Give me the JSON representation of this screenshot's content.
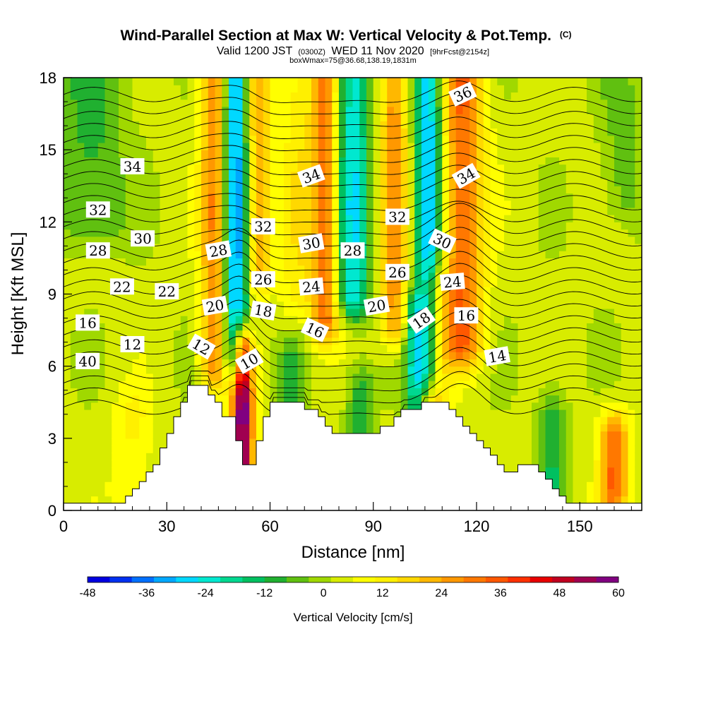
{
  "chart_data": {
    "type": "heatmap",
    "title": "Wind-Parallel Section at Max W: Vertical Velocity & Pot.Temp.",
    "title_mark": "(C)",
    "subtitle_main_a": "Valid 1200 JST",
    "subtitle_small_a": "(0300Z)",
    "subtitle_main_b": "WED 11 Nov 2020",
    "subtitle_small_b": "[9hrFcst@2154z]",
    "subtitle2": "boxWmax=75@36.68,138.19,1831m",
    "xlabel": "Distance [nm]",
    "ylabel": "Height [Kft MSL]",
    "xlim": [
      0,
      168
    ],
    "ylim": [
      0,
      18
    ],
    "xticks": [
      "0",
      "30",
      "60",
      "90",
      "120",
      "150"
    ],
    "xtick_values": [
      0,
      30,
      60,
      90,
      120,
      150
    ],
    "yticks": [
      "0",
      "3",
      "6",
      "9",
      "12",
      "15",
      "18"
    ],
    "ytick_values": [
      0,
      3,
      6,
      9,
      12,
      15,
      18
    ],
    "colorbar": {
      "label": "Vertical Velocity [cm/s]",
      "ticks": [
        "-48",
        "-36",
        "-24",
        "-12",
        "0",
        "12",
        "24",
        "36",
        "48",
        "60"
      ],
      "tick_values": [
        -48,
        -36,
        -24,
        -12,
        0,
        12,
        24,
        36,
        48,
        60
      ],
      "min": -48,
      "max": 60,
      "colors": [
        "#0000e0",
        "#0030f0",
        "#0070ff",
        "#00a8ff",
        "#00d8ff",
        "#00e8d0",
        "#00d890",
        "#00c060",
        "#20b030",
        "#60c010",
        "#a0d800",
        "#d8ec00",
        "#ffff00",
        "#fff000",
        "#ffd800",
        "#ffb800",
        "#ff9800",
        "#ff7800",
        "#ff5800",
        "#ff3000",
        "#e80000",
        "#c00020",
        "#a00050",
        "#800080"
      ]
    },
    "terrain_profile": [
      [
        0,
        0.3
      ],
      [
        2,
        0.3
      ],
      [
        4,
        0.3
      ],
      [
        6,
        0.3
      ],
      [
        8,
        0.3
      ],
      [
        10,
        0.3
      ],
      [
        12,
        0.3
      ],
      [
        14,
        0.3
      ],
      [
        16,
        0.3
      ],
      [
        18,
        0.6
      ],
      [
        20,
        0.9
      ],
      [
        22,
        1.2
      ],
      [
        24,
        1.6
      ],
      [
        26,
        1.9
      ],
      [
        28,
        2.6
      ],
      [
        30,
        3.2
      ],
      [
        32,
        3.9
      ],
      [
        34,
        4.5
      ],
      [
        36,
        5.2
      ],
      [
        38,
        5.2
      ],
      [
        40,
        5.2
      ],
      [
        42,
        4.8
      ],
      [
        44,
        4.5
      ],
      [
        46,
        3.9
      ],
      [
        48,
        3.9
      ],
      [
        50,
        2.9
      ],
      [
        52,
        1.9
      ],
      [
        54,
        1.9
      ],
      [
        56,
        2.9
      ],
      [
        58,
        3.9
      ],
      [
        60,
        4.5
      ],
      [
        62,
        4.5
      ],
      [
        64,
        4.5
      ],
      [
        66,
        4.5
      ],
      [
        68,
        4.5
      ],
      [
        70,
        4.2
      ],
      [
        72,
        4.2
      ],
      [
        74,
        3.9
      ],
      [
        76,
        3.5
      ],
      [
        78,
        3.2
      ],
      [
        80,
        3.2
      ],
      [
        82,
        3.2
      ],
      [
        84,
        3.2
      ],
      [
        86,
        3.2
      ],
      [
        88,
        3.2
      ],
      [
        90,
        3.2
      ],
      [
        92,
        3.5
      ],
      [
        94,
        3.5
      ],
      [
        96,
        3.9
      ],
      [
        98,
        4.2
      ],
      [
        100,
        4.2
      ],
      [
        102,
        4.2
      ],
      [
        104,
        4.5
      ],
      [
        106,
        4.5
      ],
      [
        108,
        4.5
      ],
      [
        110,
        4.5
      ],
      [
        112,
        4.2
      ],
      [
        114,
        3.9
      ],
      [
        116,
        3.5
      ],
      [
        118,
        3.2
      ],
      [
        120,
        2.9
      ],
      [
        122,
        2.6
      ],
      [
        124,
        2.3
      ],
      [
        126,
        1.9
      ],
      [
        128,
        1.6
      ],
      [
        130,
        1.6
      ],
      [
        132,
        1.9
      ],
      [
        134,
        1.9
      ],
      [
        136,
        1.9
      ],
      [
        138,
        1.6
      ],
      [
        140,
        1.3
      ],
      [
        142,
        0.9
      ],
      [
        144,
        0.6
      ],
      [
        146,
        0.3
      ],
      [
        148,
        0.3
      ],
      [
        150,
        0.3
      ],
      [
        152,
        0.3
      ],
      [
        154,
        0.3
      ],
      [
        156,
        0.3
      ],
      [
        158,
        0.3
      ],
      [
        160,
        0.3
      ],
      [
        162,
        0.3
      ],
      [
        164,
        0.3
      ],
      [
        166,
        0.3
      ],
      [
        168,
        0.3
      ]
    ],
    "velocity_features": [
      {
        "x": 50,
        "z_min": 6.5,
        "z_max": 18,
        "width": 4,
        "value": -40
      },
      {
        "x": 44,
        "z_min": 6,
        "z_max": 18,
        "width": 4,
        "value": 28
      },
      {
        "x": 56,
        "z_min": 10,
        "z_max": 18,
        "width": 4,
        "value": 22
      },
      {
        "x": 52,
        "z_min": 2,
        "z_max": 6.5,
        "width": 3,
        "value": 58
      },
      {
        "x": 76,
        "z_min": 8,
        "z_max": 18,
        "width": 4,
        "value": 28
      },
      {
        "x": 84,
        "z_min": 9,
        "z_max": 18,
        "width": 5,
        "value": -28
      },
      {
        "x": 68,
        "z_min": 9,
        "z_max": 18,
        "width": 5,
        "value": 10
      },
      {
        "x": 96,
        "z_min": 8,
        "z_max": 18,
        "width": 4,
        "value": 24
      },
      {
        "x": 106,
        "z_min": 6,
        "z_max": 18,
        "width": 4,
        "value": -34
      },
      {
        "x": 102,
        "z_min": 4,
        "z_max": 8,
        "width": 3,
        "value": -18
      },
      {
        "x": 116,
        "z_min": 7,
        "z_max": 18,
        "width": 6,
        "value": 30
      },
      {
        "x": 108,
        "z_min": 4,
        "z_max": 9,
        "width": 4,
        "value": 18
      },
      {
        "x": 8,
        "z_min": 12,
        "z_max": 18,
        "width": 10,
        "value": -12
      },
      {
        "x": 20,
        "z_min": 1,
        "z_max": 4,
        "width": 6,
        "value": 8
      },
      {
        "x": 142,
        "z_min": 1,
        "z_max": 4,
        "width": 4,
        "value": -14
      },
      {
        "x": 160,
        "z_min": 1,
        "z_max": 3,
        "width": 4,
        "value": 30
      },
      {
        "x": 162,
        "z_min": 13,
        "z_max": 18,
        "width": 6,
        "value": -8
      },
      {
        "x": 66,
        "z_min": 4,
        "z_max": 6,
        "width": 4,
        "value": -10
      },
      {
        "x": 86,
        "z_min": 3,
        "z_max": 5,
        "width": 4,
        "value": -14
      }
    ],
    "theta_levels": [
      10,
      11,
      12,
      13,
      14,
      15,
      16,
      17,
      18,
      19,
      20,
      21,
      22,
      23,
      24,
      25,
      26,
      27,
      28,
      29,
      30,
      31,
      32,
      33,
      34,
      35,
      36
    ],
    "contour_labels": [
      {
        "text": "40",
        "x": 7,
        "z": 6.2,
        "angle": 0
      },
      {
        "text": "16",
        "x": 7,
        "z": 7.8,
        "angle": 0
      },
      {
        "text": "12",
        "x": 20,
        "z": 6.9,
        "angle": 0
      },
      {
        "text": "22",
        "x": 17,
        "z": 9.3,
        "angle": 0
      },
      {
        "text": "22",
        "x": 30,
        "z": 9.1,
        "angle": 0
      },
      {
        "text": "28",
        "x": 10,
        "z": 10.8,
        "angle": 0
      },
      {
        "text": "30",
        "x": 23,
        "z": 11.3,
        "angle": 0
      },
      {
        "text": "32",
        "x": 10,
        "z": 12.5,
        "angle": 0
      },
      {
        "text": "34",
        "x": 20,
        "z": 14.3,
        "angle": 0
      },
      {
        "text": "12",
        "x": 40,
        "z": 6.8,
        "angle": 30
      },
      {
        "text": "10",
        "x": 54,
        "z": 6.2,
        "angle": -30
      },
      {
        "text": "20",
        "x": 44,
        "z": 8.5,
        "angle": -10
      },
      {
        "text": "18",
        "x": 58,
        "z": 8.3,
        "angle": 10
      },
      {
        "text": "28",
        "x": 45,
        "z": 10.8,
        "angle": -10
      },
      {
        "text": "26",
        "x": 58,
        "z": 9.6,
        "angle": 0
      },
      {
        "text": "32",
        "x": 58,
        "z": 11.8,
        "angle": 0
      },
      {
        "text": "24",
        "x": 72,
        "z": 9.3,
        "angle": -5
      },
      {
        "text": "16",
        "x": 73,
        "z": 7.5,
        "angle": 25
      },
      {
        "text": "30",
        "x": 72,
        "z": 11.1,
        "angle": -10
      },
      {
        "text": "34",
        "x": 72,
        "z": 13.9,
        "angle": -20
      },
      {
        "text": "28",
        "x": 84,
        "z": 10.8,
        "angle": 0
      },
      {
        "text": "20",
        "x": 91,
        "z": 8.5,
        "angle": -10
      },
      {
        "text": "26",
        "x": 97,
        "z": 9.9,
        "angle": 0
      },
      {
        "text": "32",
        "x": 97,
        "z": 12.2,
        "angle": 0
      },
      {
        "text": "18",
        "x": 104,
        "z": 7.9,
        "angle": -35
      },
      {
        "text": "30",
        "x": 110,
        "z": 11.2,
        "angle": 25
      },
      {
        "text": "24",
        "x": 113,
        "z": 9.5,
        "angle": -5
      },
      {
        "text": "16",
        "x": 117,
        "z": 8.1,
        "angle": 0
      },
      {
        "text": "34",
        "x": 117,
        "z": 13.9,
        "angle": -30
      },
      {
        "text": "36",
        "x": 116,
        "z": 17.3,
        "angle": -25
      },
      {
        "text": "14",
        "x": 126,
        "z": 6.4,
        "angle": -10
      }
    ]
  }
}
